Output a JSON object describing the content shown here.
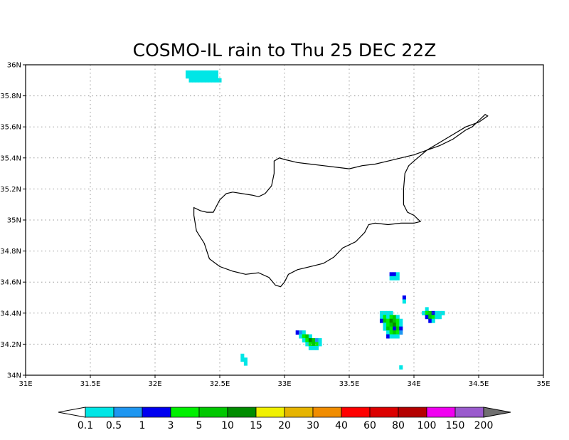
{
  "title": "COSMO-IL rain to Thu 25 DEC 22Z",
  "map": {
    "lon_range": [
      31,
      35
    ],
    "lat_range": [
      34,
      36
    ],
    "grid": "dotted",
    "x_ticks": [
      {
        "value": 31,
        "label": "31E"
      },
      {
        "value": 31.5,
        "label": "31.5E"
      },
      {
        "value": 32,
        "label": "32E"
      },
      {
        "value": 32.5,
        "label": "32.5E"
      },
      {
        "value": 33,
        "label": "33E"
      },
      {
        "value": 33.5,
        "label": "33.5E"
      },
      {
        "value": 34,
        "label": "34E"
      },
      {
        "value": 34.5,
        "label": "34.5E"
      },
      {
        "value": 35,
        "label": "35E"
      }
    ],
    "y_ticks": [
      {
        "value": 34,
        "label": "34N"
      },
      {
        "value": 34.2,
        "label": "34.2N"
      },
      {
        "value": 34.4,
        "label": "34.4N"
      },
      {
        "value": 34.6,
        "label": "34.6N"
      },
      {
        "value": 34.8,
        "label": "34.8N"
      },
      {
        "value": 35,
        "label": "35N"
      },
      {
        "value": 35.2,
        "label": "35.2N"
      },
      {
        "value": 35.4,
        "label": "35.4N"
      },
      {
        "value": 35.6,
        "label": "35.6N"
      },
      {
        "value": 35.8,
        "label": "35.8N"
      },
      {
        "value": 36,
        "label": "36N"
      }
    ],
    "coastline_name": "Cyprus coastline"
  },
  "colorbar": {
    "levels": [
      "0.1",
      "0.5",
      "1",
      "3",
      "5",
      "10",
      "15",
      "20",
      "30",
      "40",
      "60",
      "80",
      "100",
      "150",
      "200"
    ],
    "colors": [
      "#00e6e6",
      "#1e96f0",
      "#0000f0",
      "#00f000",
      "#00c800",
      "#008c00",
      "#f0f000",
      "#e6b400",
      "#f08c00",
      "#ff0000",
      "#dc0000",
      "#b40000",
      "#f000f0",
      "#9a5acd"
    ],
    "under_color": "#ffffff",
    "over_color": "#707070"
  },
  "rain_cells": [
    {
      "lon": 32.25,
      "lat": 35.95,
      "color": "#00e6e6"
    },
    {
      "lon": 32.275,
      "lat": 35.95,
      "color": "#00e6e6"
    },
    {
      "lon": 32.3,
      "lat": 35.95,
      "color": "#00e6e6"
    },
    {
      "lon": 32.325,
      "lat": 35.95,
      "color": "#00e6e6"
    },
    {
      "lon": 32.35,
      "lat": 35.95,
      "color": "#00e6e6"
    },
    {
      "lon": 32.375,
      "lat": 35.95,
      "color": "#00e6e6"
    },
    {
      "lon": 32.4,
      "lat": 35.95,
      "color": "#00e6e6"
    },
    {
      "lon": 32.425,
      "lat": 35.95,
      "color": "#00e6e6"
    },
    {
      "lon": 32.45,
      "lat": 35.95,
      "color": "#00e6e6"
    },
    {
      "lon": 32.475,
      "lat": 35.95,
      "color": "#00e6e6"
    },
    {
      "lon": 32.25,
      "lat": 35.925,
      "color": "#00e6e6"
    },
    {
      "lon": 32.275,
      "lat": 35.925,
      "color": "#00e6e6"
    },
    {
      "lon": 32.3,
      "lat": 35.925,
      "color": "#00e6e6"
    },
    {
      "lon": 32.325,
      "lat": 35.925,
      "color": "#00e6e6"
    },
    {
      "lon": 32.35,
      "lat": 35.925,
      "color": "#00e6e6"
    },
    {
      "lon": 32.375,
      "lat": 35.925,
      "color": "#00e6e6"
    },
    {
      "lon": 32.4,
      "lat": 35.925,
      "color": "#00e6e6"
    },
    {
      "lon": 32.425,
      "lat": 35.925,
      "color": "#00e6e6"
    },
    {
      "lon": 32.45,
      "lat": 35.925,
      "color": "#00e6e6"
    },
    {
      "lon": 32.475,
      "lat": 35.925,
      "color": "#00e6e6"
    },
    {
      "lon": 32.275,
      "lat": 35.9,
      "color": "#00e6e6"
    },
    {
      "lon": 32.3,
      "lat": 35.9,
      "color": "#00e6e6"
    },
    {
      "lon": 32.325,
      "lat": 35.9,
      "color": "#00e6e6"
    },
    {
      "lon": 32.35,
      "lat": 35.9,
      "color": "#00e6e6"
    },
    {
      "lon": 32.375,
      "lat": 35.9,
      "color": "#00e6e6"
    },
    {
      "lon": 32.4,
      "lat": 35.9,
      "color": "#00e6e6"
    },
    {
      "lon": 32.425,
      "lat": 35.9,
      "color": "#00e6e6"
    },
    {
      "lon": 32.45,
      "lat": 35.9,
      "color": "#00e6e6"
    },
    {
      "lon": 32.475,
      "lat": 35.9,
      "color": "#00e6e6"
    },
    {
      "lon": 32.5,
      "lat": 35.9,
      "color": "#00e6e6"
    },
    {
      "lon": 32.675,
      "lat": 34.125,
      "color": "#00e6e6"
    },
    {
      "lon": 32.675,
      "lat": 34.1,
      "color": "#00e6e6"
    },
    {
      "lon": 32.7,
      "lat": 34.1,
      "color": "#00e6e6"
    },
    {
      "lon": 32.7,
      "lat": 34.075,
      "color": "#00e6e6"
    },
    {
      "lon": 33.1,
      "lat": 34.275,
      "color": "#0000f0"
    },
    {
      "lon": 33.125,
      "lat": 34.275,
      "color": "#1e96f0"
    },
    {
      "lon": 33.15,
      "lat": 34.275,
      "color": "#00e6e6"
    },
    {
      "lon": 33.125,
      "lat": 34.25,
      "color": "#00e6e6"
    },
    {
      "lon": 33.15,
      "lat": 34.25,
      "color": "#00f000"
    },
    {
      "lon": 33.175,
      "lat": 34.25,
      "color": "#00c800"
    },
    {
      "lon": 33.2,
      "lat": 34.25,
      "color": "#00e6e6"
    },
    {
      "lon": 33.15,
      "lat": 34.225,
      "color": "#00e6e6"
    },
    {
      "lon": 33.175,
      "lat": 34.225,
      "color": "#00f000"
    },
    {
      "lon": 33.2,
      "lat": 34.225,
      "color": "#008c00"
    },
    {
      "lon": 33.225,
      "lat": 34.225,
      "color": "#00c800"
    },
    {
      "lon": 33.25,
      "lat": 34.225,
      "color": "#1e96f0"
    },
    {
      "lon": 33.275,
      "lat": 34.225,
      "color": "#00e6e6"
    },
    {
      "lon": 33.175,
      "lat": 34.2,
      "color": "#00e6e6"
    },
    {
      "lon": 33.2,
      "lat": 34.2,
      "color": "#00f000"
    },
    {
      "lon": 33.225,
      "lat": 34.2,
      "color": "#00c800"
    },
    {
      "lon": 33.25,
      "lat": 34.2,
      "color": "#00f000"
    },
    {
      "lon": 33.275,
      "lat": 34.2,
      "color": "#00e6e6"
    },
    {
      "lon": 33.2,
      "lat": 34.175,
      "color": "#00e6e6"
    },
    {
      "lon": 33.225,
      "lat": 34.175,
      "color": "#00e6e6"
    },
    {
      "lon": 33.25,
      "lat": 34.175,
      "color": "#00e6e6"
    },
    {
      "lon": 33.825,
      "lat": 34.65,
      "color": "#0000f0"
    },
    {
      "lon": 33.85,
      "lat": 34.65,
      "color": "#0000f0"
    },
    {
      "lon": 33.875,
      "lat": 34.65,
      "color": "#00e6e6"
    },
    {
      "lon": 33.825,
      "lat": 34.625,
      "color": "#00e6e6"
    },
    {
      "lon": 33.85,
      "lat": 34.625,
      "color": "#00e6e6"
    },
    {
      "lon": 33.875,
      "lat": 34.625,
      "color": "#00e6e6"
    },
    {
      "lon": 33.925,
      "lat": 34.5,
      "color": "#0000f0"
    },
    {
      "lon": 33.925,
      "lat": 34.475,
      "color": "#00e6e6"
    },
    {
      "lon": 33.75,
      "lat": 34.4,
      "color": "#00e6e6"
    },
    {
      "lon": 33.775,
      "lat": 34.4,
      "color": "#00e6e6"
    },
    {
      "lon": 33.8,
      "lat": 34.4,
      "color": "#00e6e6"
    },
    {
      "lon": 33.825,
      "lat": 34.4,
      "color": "#00e6e6"
    },
    {
      "lon": 33.75,
      "lat": 34.375,
      "color": "#00e6e6"
    },
    {
      "lon": 33.775,
      "lat": 34.375,
      "color": "#00f000"
    },
    {
      "lon": 33.8,
      "lat": 34.375,
      "color": "#00e6e6"
    },
    {
      "lon": 33.825,
      "lat": 34.375,
      "color": "#00f000"
    },
    {
      "lon": 33.85,
      "lat": 34.375,
      "color": "#00c800"
    },
    {
      "lon": 33.875,
      "lat": 34.375,
      "color": "#00e6e6"
    },
    {
      "lon": 33.75,
      "lat": 34.35,
      "color": "#0000f0"
    },
    {
      "lon": 33.775,
      "lat": 34.35,
      "color": "#00c800"
    },
    {
      "lon": 33.8,
      "lat": 34.35,
      "color": "#00f000"
    },
    {
      "lon": 33.825,
      "lat": 34.35,
      "color": "#008c00"
    },
    {
      "lon": 33.85,
      "lat": 34.35,
      "color": "#00c800"
    },
    {
      "lon": 33.875,
      "lat": 34.35,
      "color": "#00f000"
    },
    {
      "lon": 33.9,
      "lat": 34.35,
      "color": "#00e6e6"
    },
    {
      "lon": 33.775,
      "lat": 34.325,
      "color": "#00e6e6"
    },
    {
      "lon": 33.8,
      "lat": 34.325,
      "color": "#00f000"
    },
    {
      "lon": 33.825,
      "lat": 34.325,
      "color": "#00c800"
    },
    {
      "lon": 33.85,
      "lat": 34.325,
      "color": "#008c00"
    },
    {
      "lon": 33.875,
      "lat": 34.325,
      "color": "#00f000"
    },
    {
      "lon": 33.9,
      "lat": 34.325,
      "color": "#00e6e6"
    },
    {
      "lon": 33.775,
      "lat": 34.3,
      "color": "#00e6e6"
    },
    {
      "lon": 33.8,
      "lat": 34.3,
      "color": "#00c800"
    },
    {
      "lon": 33.825,
      "lat": 34.3,
      "color": "#00f000"
    },
    {
      "lon": 33.85,
      "lat": 34.3,
      "color": "#0000f0"
    },
    {
      "lon": 33.875,
      "lat": 34.3,
      "color": "#00c800"
    },
    {
      "lon": 33.9,
      "lat": 34.3,
      "color": "#0000f0"
    },
    {
      "lon": 33.8,
      "lat": 34.275,
      "color": "#00e6e6"
    },
    {
      "lon": 33.825,
      "lat": 34.275,
      "color": "#00f000"
    },
    {
      "lon": 33.85,
      "lat": 34.275,
      "color": "#00c800"
    },
    {
      "lon": 33.875,
      "lat": 34.275,
      "color": "#00f000"
    },
    {
      "lon": 33.9,
      "lat": 34.275,
      "color": "#1e96f0"
    },
    {
      "lon": 33.8,
      "lat": 34.25,
      "color": "#0000f0"
    },
    {
      "lon": 33.825,
      "lat": 34.25,
      "color": "#00e6e6"
    },
    {
      "lon": 33.85,
      "lat": 34.25,
      "color": "#00e6e6"
    },
    {
      "lon": 33.875,
      "lat": 34.25,
      "color": "#00e6e6"
    },
    {
      "lon": 33.9,
      "lat": 34.05,
      "color": "#00e6e6"
    },
    {
      "lon": 34.1,
      "lat": 34.425,
      "color": "#00e6e6"
    },
    {
      "lon": 34.075,
      "lat": 34.4,
      "color": "#00e6e6"
    },
    {
      "lon": 34.1,
      "lat": 34.4,
      "color": "#00f000"
    },
    {
      "lon": 34.125,
      "lat": 34.4,
      "color": "#00c800"
    },
    {
      "lon": 34.15,
      "lat": 34.4,
      "color": "#0000f0"
    },
    {
      "lon": 34.175,
      "lat": 34.4,
      "color": "#00e6e6"
    },
    {
      "lon": 34.2,
      "lat": 34.4,
      "color": "#00e6e6"
    },
    {
      "lon": 34.225,
      "lat": 34.4,
      "color": "#00e6e6"
    },
    {
      "lon": 34.1,
      "lat": 34.375,
      "color": "#0000f0"
    },
    {
      "lon": 34.125,
      "lat": 34.375,
      "color": "#00c800"
    },
    {
      "lon": 34.15,
      "lat": 34.375,
      "color": "#00f000"
    },
    {
      "lon": 34.175,
      "lat": 34.375,
      "color": "#00e6e6"
    },
    {
      "lon": 34.2,
      "lat": 34.375,
      "color": "#00e6e6"
    },
    {
      "lon": 34.125,
      "lat": 34.35,
      "color": "#0000f0"
    },
    {
      "lon": 34.15,
      "lat": 34.35,
      "color": "#00e6e6"
    }
  ],
  "coastline": [
    [
      34.57,
      35.67
    ],
    [
      34.55,
      35.68
    ],
    [
      34.5,
      35.64
    ],
    [
      34.45,
      35.6
    ],
    [
      34.4,
      35.58
    ],
    [
      34.3,
      35.52
    ],
    [
      34.2,
      35.48
    ],
    [
      34.1,
      35.45
    ],
    [
      34.0,
      35.42
    ],
    [
      33.9,
      35.4
    ],
    [
      33.8,
      35.38
    ],
    [
      33.7,
      35.36
    ],
    [
      33.6,
      35.35
    ],
    [
      33.5,
      35.33
    ],
    [
      33.4,
      35.34
    ],
    [
      33.3,
      35.35
    ],
    [
      33.2,
      35.36
    ],
    [
      33.1,
      35.37
    ],
    [
      33.0,
      35.39
    ],
    [
      32.96,
      35.4
    ],
    [
      32.92,
      35.38
    ],
    [
      32.92,
      35.3
    ],
    [
      32.9,
      35.22
    ],
    [
      32.85,
      35.17
    ],
    [
      32.8,
      35.15
    ],
    [
      32.75,
      35.16
    ],
    [
      32.6,
      35.18
    ],
    [
      32.55,
      35.17
    ],
    [
      32.5,
      35.13
    ],
    [
      32.45,
      35.05
    ],
    [
      32.4,
      35.05
    ],
    [
      32.35,
      35.06
    ],
    [
      32.3,
      35.08
    ],
    [
      32.3,
      35.03
    ],
    [
      32.32,
      34.93
    ],
    [
      32.38,
      34.85
    ],
    [
      32.42,
      34.75
    ],
    [
      32.5,
      34.7
    ],
    [
      32.6,
      34.67
    ],
    [
      32.7,
      34.65
    ],
    [
      32.8,
      34.66
    ],
    [
      32.88,
      34.63
    ],
    [
      32.93,
      34.58
    ],
    [
      32.97,
      34.57
    ],
    [
      33.0,
      34.6
    ],
    [
      33.03,
      34.65
    ],
    [
      33.1,
      34.68
    ],
    [
      33.2,
      34.7
    ],
    [
      33.3,
      34.72
    ],
    [
      33.38,
      34.76
    ],
    [
      33.45,
      34.82
    ],
    [
      33.55,
      34.86
    ],
    [
      33.62,
      34.92
    ],
    [
      33.65,
      34.97
    ],
    [
      33.7,
      34.98
    ],
    [
      33.8,
      34.97
    ],
    [
      33.9,
      34.98
    ],
    [
      34.0,
      34.98
    ],
    [
      34.05,
      34.99
    ],
    [
      34.0,
      35.03
    ],
    [
      33.95,
      35.05
    ],
    [
      33.92,
      35.1
    ],
    [
      33.92,
      35.2
    ],
    [
      33.93,
      35.3
    ],
    [
      33.96,
      35.35
    ],
    [
      34.0,
      35.38
    ],
    [
      34.1,
      35.45
    ],
    [
      34.2,
      35.5
    ],
    [
      34.3,
      35.55
    ],
    [
      34.4,
      35.6
    ],
    [
      34.5,
      35.63
    ],
    [
      34.57,
      35.67
    ]
  ]
}
